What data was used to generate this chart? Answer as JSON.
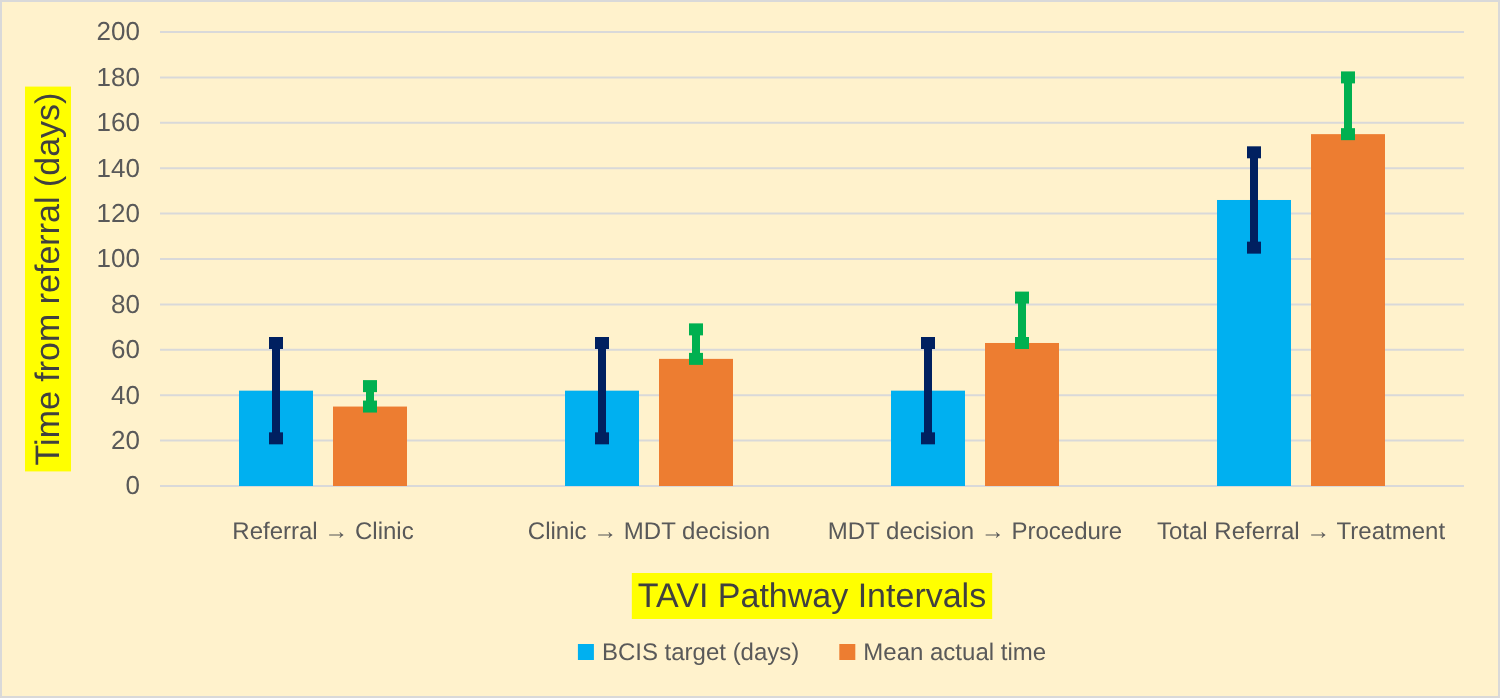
{
  "chart_data": {
    "type": "bar",
    "xlabel": "TAVI Pathway Intervals",
    "ylabel": "Time from referral (days)",
    "categories": [
      "Referral → Clinic",
      "Clinic → MDT decision",
      "MDT decision → Procedure",
      "Total Referral → Treatment"
    ],
    "series": [
      {
        "name": "BCIS target (days)",
        "color": "#00b0f0",
        "values": [
          42,
          42,
          42,
          126
        ],
        "errors": [
          [
            21,
            63
          ],
          [
            21,
            63
          ],
          [
            21,
            63
          ],
          [
            105,
            147
          ]
        ]
      },
      {
        "name": "Mean actual time",
        "color": "#ed7d31",
        "values": [
          35,
          56,
          63,
          155
        ],
        "errors": [
          [
            35,
            44
          ],
          [
            56,
            69
          ],
          [
            63,
            83
          ],
          [
            155,
            180
          ]
        ]
      }
    ],
    "ylim": [
      0,
      200
    ],
    "yticks": [
      0,
      20,
      40,
      60,
      80,
      100,
      120,
      140,
      160,
      180,
      200
    ],
    "grid": "y",
    "legend": "bottom"
  }
}
